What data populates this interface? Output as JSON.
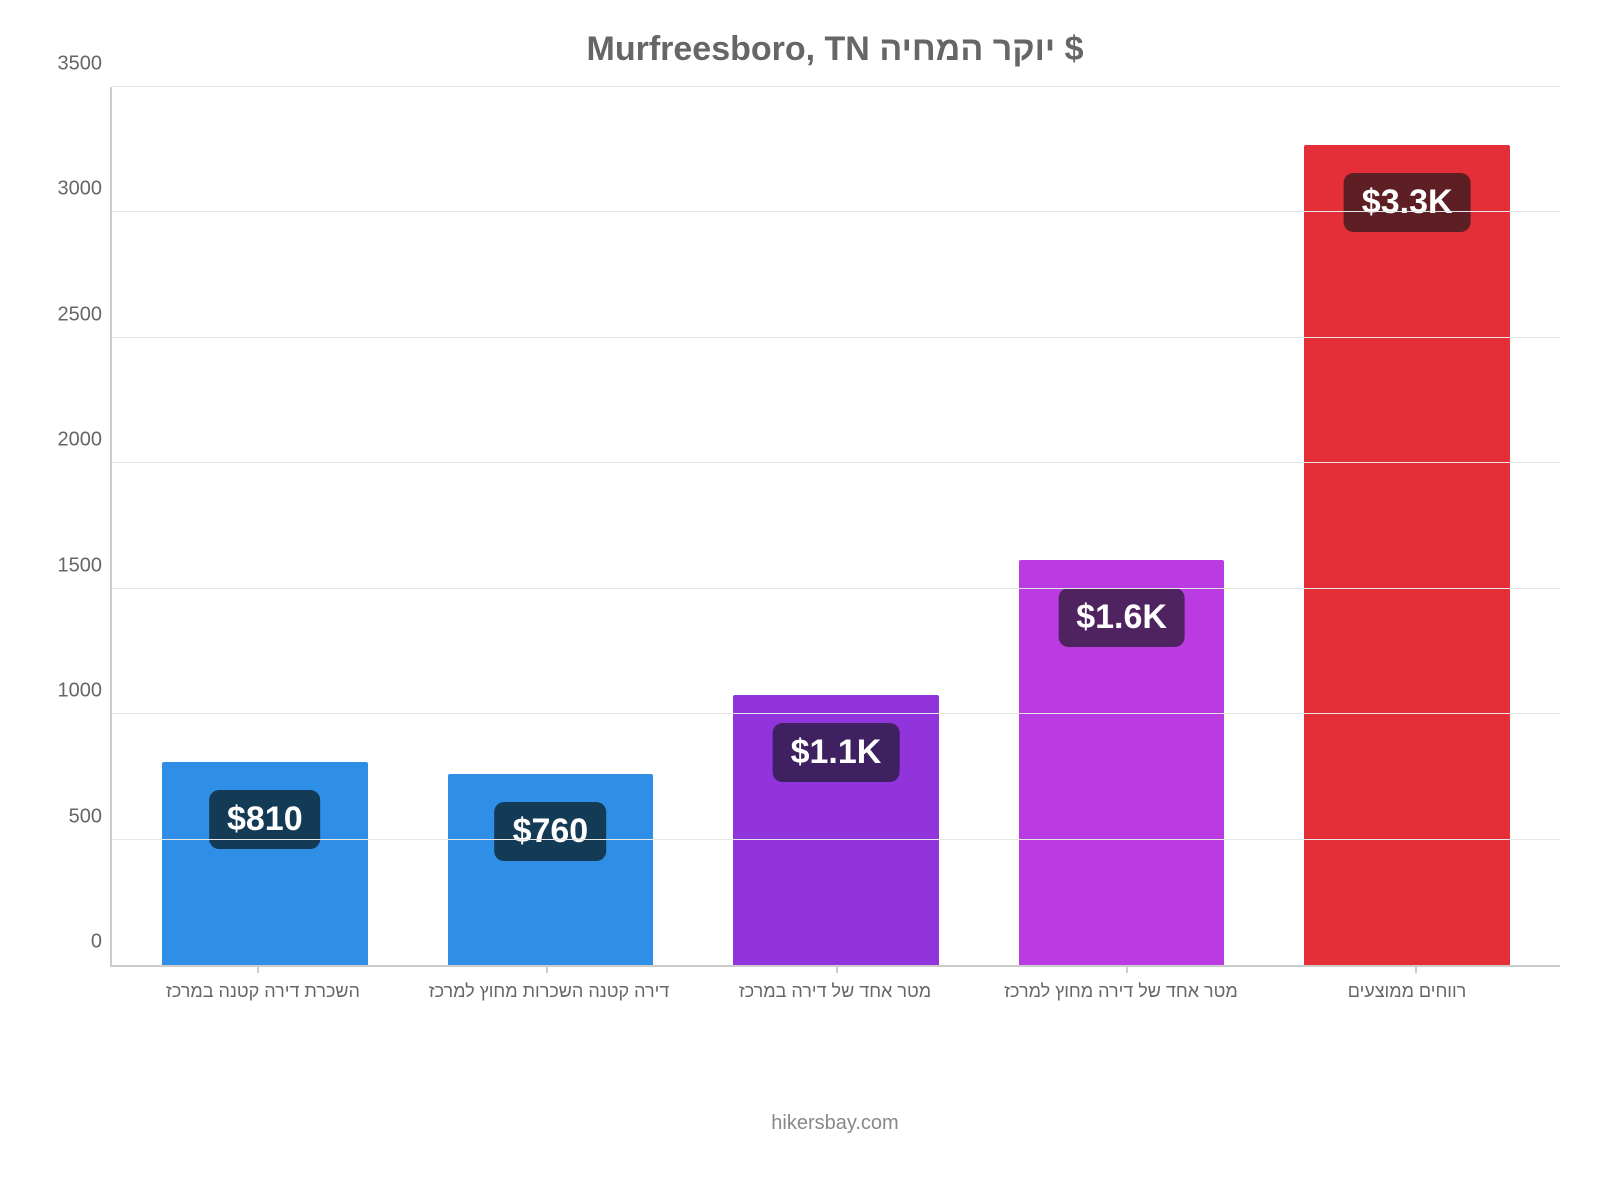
{
  "chart": {
    "type": "bar",
    "title": "Murfreesboro, TN יוקר המחיה $",
    "title_fontsize": 34,
    "title_color": "#666666",
    "background_color": "#ffffff",
    "axis_color": "#cccccc",
    "grid_color": "#e6e6e6",
    "tick_label_color": "#666666",
    "x_label_color": "#666666",
    "y": {
      "min": 0,
      "max": 3500,
      "ticks": [
        0,
        500,
        1000,
        1500,
        2000,
        2500,
        3000,
        3500
      ]
    },
    "bar_width_pct": 72,
    "bars": [
      {
        "category": "השכרת דירה קטנה במרכז",
        "value": 810,
        "display": "$810",
        "fill": "#2f8ee6",
        "badge_bg": "#143b55"
      },
      {
        "category": "דירה קטנה השכרות מחוץ למרכז",
        "value": 760,
        "display": "$760",
        "fill": "#2f8ee6",
        "badge_bg": "#143b55"
      },
      {
        "category": "מטר אחד של דירה במרכז",
        "value": 1075,
        "display": "$1.1K",
        "fill": "#9134db",
        "badge_bg": "#3f2060"
      },
      {
        "category": "מטר אחד של דירה מחוץ למרכז",
        "value": 1615,
        "display": "$1.6K",
        "fill": "#b93be1",
        "badge_bg": "#4f2360"
      },
      {
        "category": "רווחים ממוצעים",
        "value": 3270,
        "display": "$3.3K",
        "fill": "#e52f38",
        "badge_bg": "#5d1f23"
      }
    ],
    "footer": "hikersbay.com",
    "footer_color": "#888888"
  }
}
